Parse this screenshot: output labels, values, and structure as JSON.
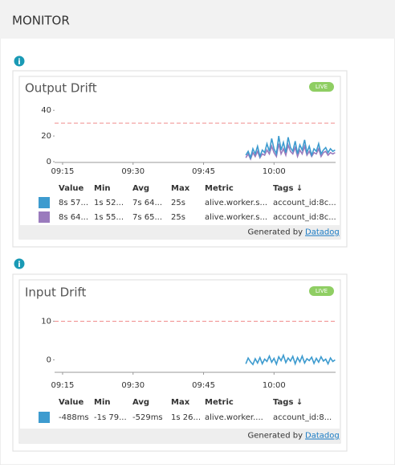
{
  "header": {
    "title": "MONITOR"
  },
  "info_icon": "i",
  "chart_data": [
    {
      "type": "line",
      "title": "Output Drift",
      "badge": "LIVE",
      "x": [
        594,
        594.5,
        595,
        595.5,
        596,
        596.5,
        597,
        597.5,
        598,
        598.5,
        599,
        599.5,
        600,
        600.5,
        601,
        601.5,
        602,
        602.5,
        603,
        603.5,
        604,
        604.5,
        605,
        605.5,
        606,
        606.5,
        607,
        607.5,
        608,
        608.5,
        609,
        609.5,
        610,
        610.5,
        611,
        611.5,
        612,
        612.5,
        613
      ],
      "series": [
        {
          "color": "#9a7bbd",
          "values": [
            3,
            6,
            2,
            7,
            4,
            8,
            3,
            6,
            5,
            9,
            6,
            12,
            7,
            4,
            14,
            6,
            10,
            5,
            13,
            8,
            6,
            11,
            4,
            9,
            6,
            12,
            5,
            8,
            4,
            7,
            6,
            10,
            4,
            7,
            8,
            5,
            7,
            6,
            7
          ]
        },
        {
          "color": "#3d9bcf",
          "values": [
            5,
            8,
            3,
            10,
            6,
            12,
            4,
            9,
            7,
            14,
            8,
            18,
            10,
            6,
            20,
            9,
            15,
            7,
            19,
            11,
            8,
            16,
            6,
            13,
            9,
            17,
            7,
            12,
            5,
            10,
            8,
            14,
            6,
            9,
            11,
            7,
            10,
            8,
            9
          ]
        }
      ],
      "xlim": [
        553.3,
        613.1
      ],
      "xticks": [
        {
          "value": 555,
          "label": "09:15"
        },
        {
          "value": 570,
          "label": "09:30"
        },
        {
          "value": 585,
          "label": "09:45"
        },
        {
          "value": 600,
          "label": "10:00"
        }
      ],
      "ylim": [
        0,
        42
      ],
      "yticks": [
        0,
        20,
        40
      ],
      "threshold": 30,
      "threshold_color": "#f08d8d",
      "table": {
        "columns": [
          "Value",
          "Min",
          "Avg",
          "Max",
          "Metric",
          "Tags ↓"
        ],
        "rows": [
          [
            "8s 57...",
            "1s 52...",
            "7s 64...",
            "25s",
            "alive.worker.s...",
            "account_id:8c..."
          ],
          [
            "8s 64...",
            "1s 55...",
            "7s 65...",
            "25s",
            "alive.worker.s...",
            "account_id:8c..."
          ]
        ]
      },
      "footer": {
        "text": "Generated by",
        "link": "Datadog"
      }
    },
    {
      "type": "line",
      "title": "Input Drift",
      "badge": "LIVE",
      "x": [
        594,
        594.5,
        595,
        595.5,
        596,
        596.5,
        597,
        597.5,
        598,
        598.5,
        599,
        599.5,
        600,
        600.5,
        601,
        601.5,
        602,
        602.5,
        603,
        603.5,
        604,
        604.5,
        605,
        605.5,
        606,
        606.5,
        607,
        607.5,
        608,
        608.5,
        609,
        609.5,
        610,
        610.5,
        611,
        611.5,
        612,
        612.5,
        613
      ],
      "series": [
        {
          "color": "#3d9bcf",
          "values": [
            -1,
            0.5,
            -0.5,
            -1.2,
            0.3,
            -0.8,
            0.6,
            -1,
            0.2,
            -0.4,
            1,
            -0.6,
            0.4,
            -1.1,
            0.8,
            -0.2,
            1.2,
            -0.7,
            0.5,
            -0.3,
            0.9,
            -1,
            0.6,
            -0.5,
            1,
            -0.8,
            0.3,
            -0.2,
            0.7,
            -0.9,
            0.4,
            -0.6,
            0.8,
            -0.3,
            0.2,
            -1,
            0.5,
            -0.4,
            0
          ]
        }
      ],
      "xlim": [
        553.3,
        613.1
      ],
      "xticks": [
        {
          "value": 555,
          "label": "09:15"
        },
        {
          "value": 570,
          "label": "09:30"
        },
        {
          "value": 585,
          "label": "09:45"
        },
        {
          "value": 600,
          "label": "10:00"
        }
      ],
      "ylim": [
        -3,
        13
      ],
      "yticks": [
        0,
        10
      ],
      "threshold": 10,
      "threshold_color": "#f08d8d",
      "table": {
        "columns": [
          "Value",
          "Min",
          "Avg",
          "Max",
          "Metric",
          "Tags ↓"
        ],
        "rows": [
          [
            "-488ms",
            "-1s 79...",
            "-529ms",
            "1s 26...",
            "alive.worker....",
            "account_id:8..."
          ]
        ]
      },
      "footer": {
        "text": "Generated by",
        "link": "Datadog"
      }
    }
  ]
}
